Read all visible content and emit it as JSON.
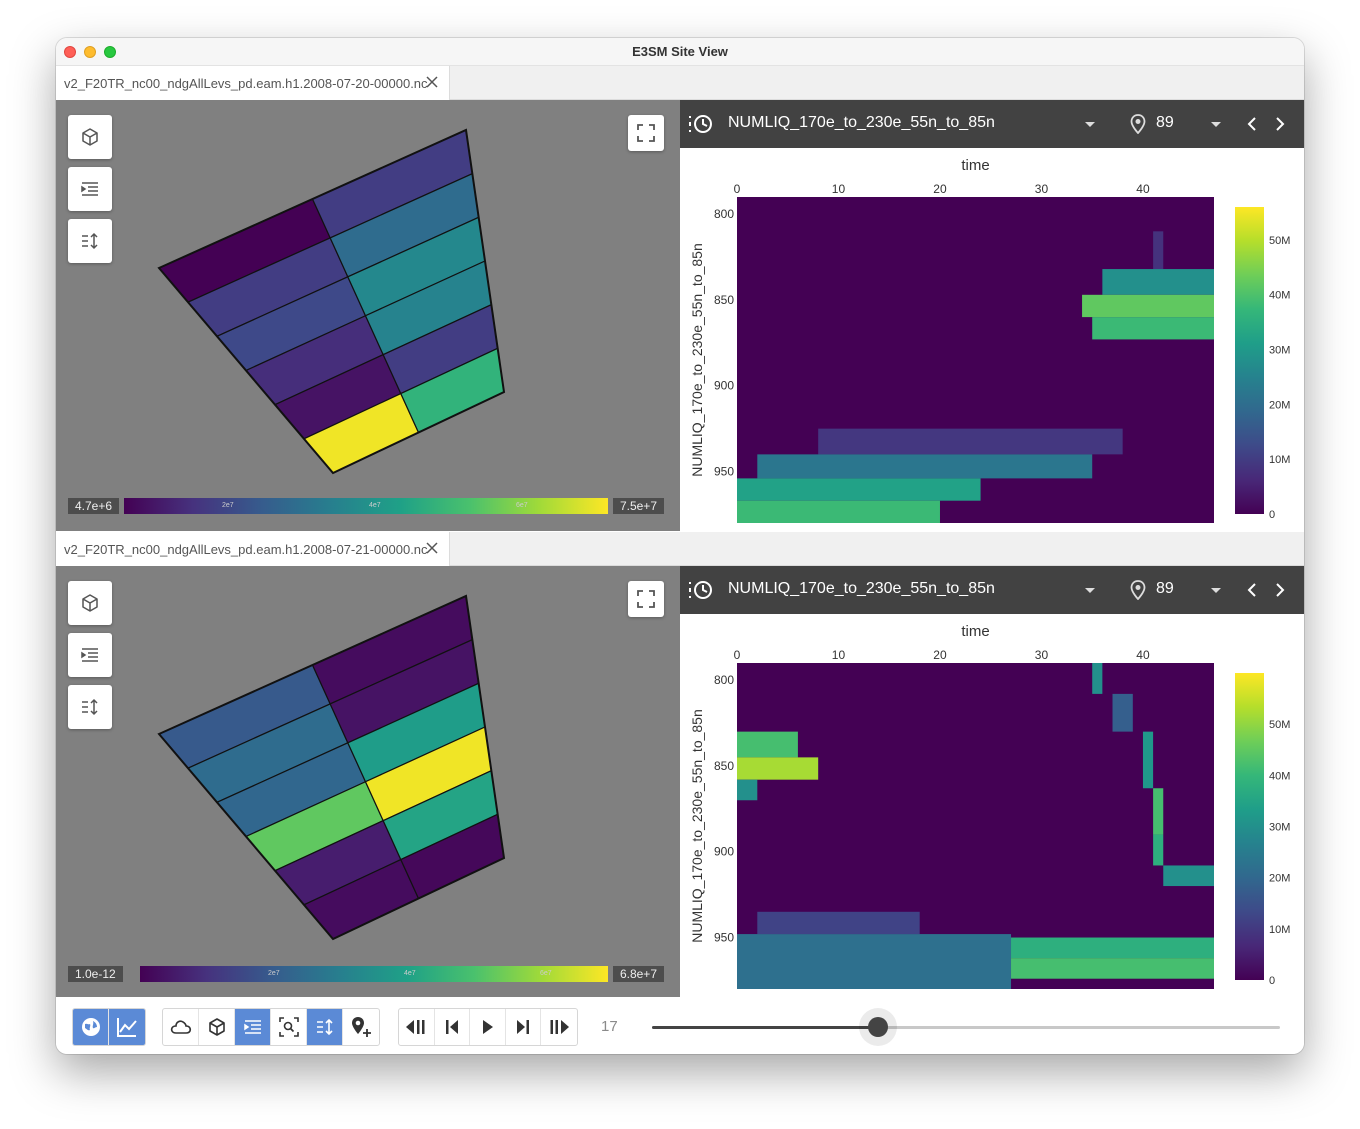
{
  "window": {
    "title": "E3SM Site View"
  },
  "panels": [
    {
      "file_tab": "v2_F20TR_nc00_ndgAllLevs_pd.eam.h1.2008-07-20-00000.nc",
      "colorbar": {
        "min": "4.7e+6",
        "max": "7.5e+7",
        "ticks": [
          "2e7",
          "4e7",
          "6e7"
        ]
      },
      "cells": [
        [
          0.0,
          0.18
        ],
        [
          0.18,
          0.35
        ],
        [
          0.22,
          0.47
        ],
        [
          0.13,
          0.45
        ],
        [
          0.05,
          0.18
        ],
        [
          0.98,
          0.65
        ]
      ],
      "toolbar": {
        "variable": "NUMLIQ_170e_to_230e_55n_to_85n",
        "site": "89"
      }
    },
    {
      "file_tab": "v2_F20TR_nc00_ndgAllLevs_pd.eam.h1.2008-07-21-00000.nc",
      "colorbar": {
        "min": "1.0e-12",
        "max": "6.8e+7",
        "ticks": [
          "2e7",
          "4e7",
          "6e7"
        ]
      },
      "cells": [
        [
          0.28,
          0.03
        ],
        [
          0.35,
          0.05
        ],
        [
          0.33,
          0.55
        ],
        [
          0.75,
          0.98
        ],
        [
          0.08,
          0.58
        ],
        [
          0.03,
          0.02
        ]
      ],
      "toolbar": {
        "variable": "NUMLIQ_170e_to_230e_55n_to_85n",
        "site": "89"
      }
    }
  ],
  "colors": {
    "toolbar_bg": "#424242",
    "viewport_bg": "#808080",
    "active_button": "#5b8ad6"
  },
  "chart_data": [
    {
      "type": "heatmap",
      "title": "",
      "xlabel": "time",
      "ylabel": "NUMLIQ_170e_to_230e_55n_to_85n",
      "x_axis_position": "top",
      "xlim": [
        0,
        47
      ],
      "ylim": [
        980,
        790
      ],
      "x_ticks": [
        "0",
        "10",
        "20",
        "30",
        "40"
      ],
      "y_ticks": [
        "800",
        "850",
        "900",
        "950"
      ],
      "colorscale": "viridis",
      "zlim": [
        0,
        56000000
      ],
      "colorbar_ticks": [
        "0",
        "10M",
        "20M",
        "30M",
        "40M",
        "50M"
      ],
      "regions": [
        {
          "x": [
            41,
            42
          ],
          "y": [
            810,
            832
          ],
          "value": 8000000
        },
        {
          "x": [
            36,
            47
          ],
          "y": [
            832,
            847
          ],
          "value": 28000000
        },
        {
          "x": [
            34,
            47
          ],
          "y": [
            847,
            860
          ],
          "value": 42000000
        },
        {
          "x": [
            35,
            47
          ],
          "y": [
            860,
            873
          ],
          "value": 38000000
        },
        {
          "x": [
            8,
            38
          ],
          "y": [
            925,
            940
          ],
          "value": 9000000
        },
        {
          "x": [
            2,
            35
          ],
          "y": [
            940,
            954
          ],
          "value": 22000000
        },
        {
          "x": [
            0,
            24
          ],
          "y": [
            954,
            967
          ],
          "value": 32000000
        },
        {
          "x": [
            0,
            20
          ],
          "y": [
            967,
            980
          ],
          "value": 38000000
        },
        {
          "x": [
            3,
            19
          ],
          "y": [
            980,
            987
          ],
          "value": 2000000
        }
      ]
    },
    {
      "type": "heatmap",
      "title": "",
      "xlabel": "time",
      "ylabel": "NUMLIQ_170e_to_230e_55n_to_85n",
      "x_axis_position": "top",
      "xlim": [
        0,
        47
      ],
      "ylim": [
        980,
        790
      ],
      "x_ticks": [
        "0",
        "10",
        "20",
        "30",
        "40"
      ],
      "y_ticks": [
        "800",
        "850",
        "900",
        "950"
      ],
      "colorscale": "viridis",
      "zlim": [
        0,
        60000000
      ],
      "colorbar_ticks": [
        "0",
        "10M",
        "20M",
        "30M",
        "40M",
        "50M"
      ],
      "regions": [
        {
          "x": [
            35,
            36
          ],
          "y": [
            790,
            808
          ],
          "value": 30000000
        },
        {
          "x": [
            37,
            39
          ],
          "y": [
            808,
            830
          ],
          "value": 18000000
        },
        {
          "x": [
            40,
            41
          ],
          "y": [
            830,
            863
          ],
          "value": 32000000
        },
        {
          "x": [
            41,
            42
          ],
          "y": [
            863,
            890
          ],
          "value": 42000000
        },
        {
          "x": [
            41,
            42
          ],
          "y": [
            890,
            908
          ],
          "value": 38000000
        },
        {
          "x": [
            42,
            47
          ],
          "y": [
            908,
            920
          ],
          "value": 30000000
        },
        {
          "x": [
            0,
            6
          ],
          "y": [
            830,
            845
          ],
          "value": 42000000
        },
        {
          "x": [
            0,
            8
          ],
          "y": [
            845,
            858
          ],
          "value": 52000000
        },
        {
          "x": [
            0,
            2
          ],
          "y": [
            858,
            870
          ],
          "value": 30000000
        },
        {
          "x": [
            2,
            18
          ],
          "y": [
            935,
            948
          ],
          "value": 12000000
        },
        {
          "x": [
            0,
            27
          ],
          "y": [
            948,
            980
          ],
          "value": 22000000
        },
        {
          "x": [
            27,
            47
          ],
          "y": [
            950,
            962
          ],
          "value": 38000000
        },
        {
          "x": [
            27,
            47
          ],
          "y": [
            962,
            974
          ],
          "value": 42000000
        }
      ]
    }
  ],
  "bottom": {
    "time_index": "17",
    "time_fraction": 0.36,
    "views": [
      "globe-icon",
      "chart-line-icon"
    ],
    "tools": [
      "cloud-icon",
      "cube-icon",
      "center-icon",
      "zoom-fit-icon",
      "vertical-scale-icon",
      "add-location-icon"
    ],
    "playback": [
      "skip-start-icon",
      "step-back-icon",
      "play-icon",
      "step-forward-icon",
      "skip-end-icon"
    ]
  }
}
